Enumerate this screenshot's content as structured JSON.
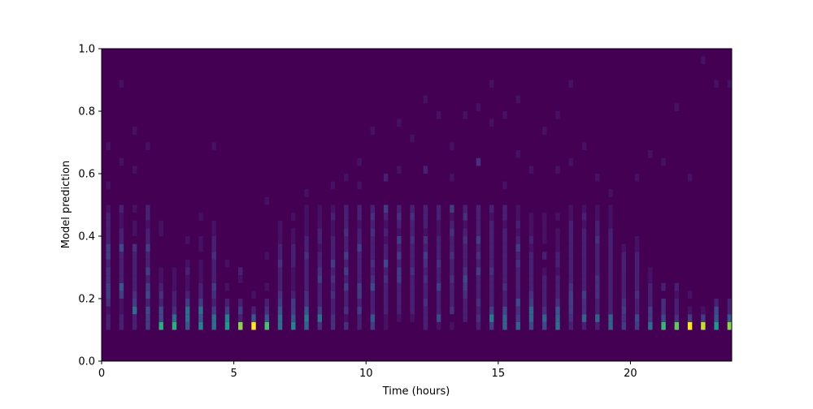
{
  "chart_data": {
    "type": "heatmap",
    "title": "",
    "xlabel": "Time (hours)",
    "ylabel": "Model prediction",
    "xlim": [
      0,
      23.83
    ],
    "ylim": [
      0,
      1.0
    ],
    "x_ticks": [
      "0",
      "5",
      "10",
      "15",
      "20"
    ],
    "x_tick_values": [
      0,
      5,
      10,
      15,
      20
    ],
    "y_ticks": [
      "0.0",
      "0.2",
      "0.4",
      "0.6",
      "0.8",
      "1.0"
    ],
    "y_tick_values": [
      0,
      0.2,
      0.4,
      0.6,
      0.8,
      1.0
    ],
    "colormap": "viridis",
    "background_color": "#440154",
    "value_max": 10,
    "x_bin_width": 0.1667,
    "y_bin_start": 0.1,
    "y_bin_width": 0.025,
    "x_centers": [
      0.25,
      0.75,
      1.25,
      1.75,
      2.25,
      2.75,
      3.25,
      3.75,
      4.25,
      4.75,
      5.25,
      5.75,
      6.25,
      6.75,
      7.25,
      7.75,
      8.25,
      8.75,
      9.25,
      9.75,
      10.25,
      10.75,
      11.25,
      11.75,
      12.25,
      12.75,
      13.25,
      13.75,
      14.25,
      14.75,
      15.25,
      15.75,
      16.25,
      16.75,
      17.25,
      17.75,
      18.25,
      18.75,
      19.25,
      19.75,
      20.25,
      20.75,
      21.25,
      21.75,
      22.25,
      22.75,
      23.25,
      23.75
    ],
    "columns": [
      [
        1,
        1,
        0.5,
        1.5,
        2,
        2,
        1.5,
        1.5,
        1,
        2,
        2,
        1,
        1,
        1,
        1,
        0.5
      ],
      [
        1,
        1,
        0.5,
        0.5,
        2,
        3,
        1,
        1,
        1,
        1,
        2.5,
        1,
        1,
        0.5,
        0.5,
        1
      ],
      [
        1,
        1,
        4,
        2,
        1.5,
        1,
        1,
        1,
        1,
        1,
        1.5,
        0,
        0.5,
        0.5,
        0,
        0.5
      ],
      [
        2,
        2,
        2.5,
        1,
        2.5,
        2,
        1,
        2,
        1,
        1,
        2,
        1,
        1,
        0.5,
        1,
        1
      ],
      [
        7,
        2.5,
        2.5,
        1,
        1.5,
        1,
        0.5,
        0.5,
        0,
        0,
        0,
        0,
        0.5,
        0.5,
        0,
        0
      ],
      [
        7,
        4,
        1.5,
        1,
        1,
        0.5,
        0.5,
        0.5,
        0,
        0,
        0,
        0,
        0,
        0,
        0,
        0
      ],
      [
        3,
        4,
        4,
        2,
        1,
        0.5,
        0.5,
        1,
        0.5,
        0,
        0,
        0.5,
        0,
        0,
        0,
        0
      ],
      [
        5,
        3,
        4,
        2,
        1,
        1,
        0.5,
        0.5,
        0.5,
        0,
        0.5,
        0.5,
        0,
        0,
        0.5,
        0
      ],
      [
        4,
        4,
        2,
        1,
        1.5,
        2,
        1,
        1,
        1,
        1.5,
        1,
        1,
        0.5,
        0.5,
        0,
        0
      ],
      [
        6,
        5,
        2,
        1,
        0,
        0.5,
        0,
        0,
        0.5,
        0,
        0,
        0,
        0,
        0,
        0,
        0
      ],
      [
        9,
        1,
        2,
        1,
        0,
        0,
        0.5,
        1,
        0,
        0,
        0,
        0,
        0,
        0,
        0,
        0
      ],
      [
        10,
        3,
        1,
        0,
        0.5,
        0,
        0,
        0,
        0,
        0,
        0,
        0,
        0,
        0,
        0,
        0
      ],
      [
        8,
        3,
        1.5,
        1,
        0,
        0.5,
        0,
        0,
        0,
        0.5,
        0,
        0,
        0,
        0,
        0,
        0
      ],
      [
        4,
        4,
        3,
        2,
        1.5,
        1,
        1,
        1,
        1.5,
        1,
        1,
        0.5,
        0.5,
        0.5,
        0,
        0
      ],
      [
        5,
        3,
        2,
        2,
        1,
        0.5,
        0.5,
        0.5,
        1,
        1,
        1,
        0.5,
        0.5,
        0,
        0.5,
        0
      ],
      [
        3.5,
        4.5,
        3,
        1.5,
        1.5,
        1,
        1,
        1,
        1,
        1.5,
        1,
        1,
        0.5,
        0.5,
        0.5,
        0.5
      ],
      [
        1.5,
        4,
        2,
        1,
        1,
        1,
        2,
        1.5,
        1,
        1,
        0.5,
        1,
        1,
        0.5,
        0.5,
        0.5
      ],
      [
        1.5,
        1.5,
        1,
        1,
        1.5,
        1,
        1.5,
        1,
        2,
        1,
        1,
        1,
        0.5,
        0.5,
        1,
        0.5
      ],
      [
        1.5,
        0.5,
        1.5,
        1,
        1,
        2,
        1,
        2,
        1,
        2,
        1,
        1,
        1.5,
        1,
        1,
        1
      ],
      [
        1,
        1,
        2,
        1,
        2,
        2,
        1,
        1,
        1,
        1,
        2,
        1,
        1,
        0.5,
        1,
        1
      ],
      [
        2,
        3,
        1,
        1,
        1,
        2.5,
        1.5,
        1,
        1.5,
        1,
        1,
        1,
        1.5,
        1,
        1.5,
        1
      ],
      [
        0.5,
        0.5,
        1,
        1,
        1,
        1,
        1.5,
        1,
        2.5,
        1,
        1,
        0.5,
        1,
        0.5,
        1,
        2
      ],
      [
        0,
        0.5,
        1,
        1,
        1,
        1,
        2,
        2,
        1,
        2,
        1,
        2,
        0.5,
        1,
        1.5,
        1
      ],
      [
        0,
        0.5,
        1,
        1,
        1,
        1,
        1,
        1.5,
        1,
        1,
        1,
        1.5,
        1,
        1,
        1.5,
        1
      ],
      [
        1,
        1,
        1,
        1.5,
        1,
        1,
        1.5,
        1,
        1.5,
        2,
        1,
        1.5,
        0.5,
        1,
        1,
        1
      ],
      [
        0.5,
        2.5,
        1,
        1,
        1,
        2,
        1,
        1,
        1.5,
        1,
        1,
        1,
        0.5,
        0.5,
        1,
        1
      ],
      [
        0.5,
        0,
        1.5,
        1,
        1,
        1,
        1.5,
        1,
        1,
        1.5,
        1,
        1,
        1.5,
        1,
        0.5,
        2
      ],
      [
        0,
        1,
        1,
        1,
        1.5,
        2,
        2.5,
        1.5,
        1,
        1,
        1,
        1.5,
        1,
        0.5,
        1.5,
        1
      ],
      [
        1,
        1.5,
        1,
        1.5,
        1,
        1,
        1,
        2,
        1,
        1.5,
        1,
        2,
        1,
        1,
        1,
        1
      ],
      [
        2,
        4.5,
        2,
        1,
        1,
        1,
        1,
        1.5,
        1,
        1,
        1,
        1,
        1,
        1,
        0.5,
        1
      ],
      [
        3.5,
        3.5,
        2.5,
        1,
        1,
        1.5,
        1,
        1,
        1,
        1,
        1,
        1,
        1,
        0.5,
        1,
        1
      ],
      [
        3.5,
        2,
        1.5,
        2.5,
        1,
        1,
        1,
        1,
        1.5,
        1,
        2,
        1,
        0.5,
        1,
        0.5,
        0.5
      ],
      [
        2.5,
        3.5,
        3.5,
        2,
        1.5,
        1,
        1,
        1,
        1,
        1,
        0.5,
        1,
        0.5,
        0.5,
        0.5,
        0
      ],
      [
        2.5,
        3.5,
        1.5,
        1,
        1,
        1,
        1,
        0.5,
        0,
        1,
        0,
        0.5,
        0.5,
        0.5,
        0.5,
        0
      ],
      [
        4,
        3.5,
        3,
        1.5,
        1,
        1,
        1,
        0.5,
        1,
        1,
        0.5,
        0.5,
        0.5,
        0,
        0.5,
        0
      ],
      [
        1,
        1.5,
        2,
        2,
        2,
        1.5,
        1,
        1,
        1,
        1,
        1,
        1,
        1,
        1,
        0.5,
        0.5
      ],
      [
        1,
        3.5,
        1.5,
        1.5,
        2,
        1,
        1,
        1,
        1,
        1,
        1,
        1,
        1,
        0.5,
        1,
        0.5
      ],
      [
        1,
        3.5,
        1,
        1,
        1.5,
        1.5,
        1.5,
        1,
        1,
        1,
        1,
        1.5,
        1,
        1,
        0.5,
        0.5
      ],
      [
        3.5,
        3.5,
        1,
        1,
        1,
        1,
        1,
        1,
        1,
        1,
        1,
        1,
        1,
        0.5,
        0.5,
        0.5
      ],
      [
        2,
        1.5,
        2,
        1.5,
        1,
        1,
        1,
        1,
        1,
        1,
        0.5,
        0,
        0,
        0,
        0,
        0
      ],
      [
        2,
        2.5,
        1,
        1,
        1.5,
        1,
        1,
        1,
        1,
        1,
        0.5,
        0.5,
        0,
        0,
        0,
        0
      ],
      [
        4,
        2,
        2,
        1,
        1,
        1,
        0.5,
        0.5,
        0,
        0,
        0,
        0,
        0,
        0,
        0,
        0
      ],
      [
        7.5,
        2.5,
        1.5,
        1.5,
        0,
        1,
        0,
        0,
        0,
        0,
        0,
        0,
        0,
        0,
        0,
        0
      ],
      [
        8.5,
        1.5,
        1,
        1,
        0.5,
        1,
        0,
        0,
        0,
        0,
        0,
        0,
        0,
        0,
        0,
        0
      ],
      [
        10,
        2,
        0.5,
        0,
        0.5,
        0,
        0,
        0,
        0,
        0,
        0,
        0,
        0,
        0,
        0,
        0
      ],
      [
        9.5,
        2,
        0.5,
        0,
        0,
        0,
        0,
        0,
        0,
        0,
        0,
        0,
        0,
        0,
        0,
        0
      ],
      [
        6,
        3,
        2.5,
        1,
        0,
        0,
        0,
        0,
        0,
        0,
        0,
        0,
        0,
        0,
        0,
        0
      ],
      [
        9,
        3,
        1,
        1,
        0,
        0,
        0,
        0,
        0,
        0,
        0,
        0,
        0,
        0,
        0,
        0
      ]
    ],
    "sparse_upper_cells": [
      [
        0,
        0.675,
        0.5
      ],
      [
        0,
        0.55,
        0.5
      ],
      [
        1,
        0.875,
        0.5
      ],
      [
        1,
        0.625,
        0.5
      ],
      [
        2,
        0.725,
        0.5
      ],
      [
        2,
        0.6,
        0.5
      ],
      [
        3,
        0.675,
        0.5
      ],
      [
        8,
        0.675,
        0.5
      ],
      [
        12,
        0.5,
        0.5
      ],
      [
        15,
        0.525,
        0.5
      ],
      [
        17,
        0.55,
        0.5
      ],
      [
        18,
        0.575,
        0.5
      ],
      [
        19,
        0.625,
        0.5
      ],
      [
        19,
        0.55,
        0.5
      ],
      [
        20,
        0.725,
        0.5
      ],
      [
        21,
        0.575,
        1
      ],
      [
        22,
        0.75,
        0.5
      ],
      [
        22,
        0.6,
        0.5
      ],
      [
        23,
        0.7,
        0.5
      ],
      [
        24,
        0.825,
        0.5
      ],
      [
        24,
        0.6,
        1
      ],
      [
        25,
        0.775,
        0.5
      ],
      [
        26,
        0.675,
        0.5
      ],
      [
        26,
        0.575,
        0.5
      ],
      [
        27,
        0.775,
        0.5
      ],
      [
        28,
        0.8,
        0.5
      ],
      [
        28,
        0.625,
        1.5
      ],
      [
        29,
        0.875,
        0.5
      ],
      [
        29,
        0.75,
        0.5
      ],
      [
        30,
        0.775,
        0.5
      ],
      [
        30,
        0.55,
        0.5
      ],
      [
        31,
        0.825,
        0.5
      ],
      [
        31,
        0.65,
        0.5
      ],
      [
        32,
        0.6,
        0.5
      ],
      [
        33,
        0.725,
        0.5
      ],
      [
        34,
        0.775,
        0.5
      ],
      [
        34,
        0.6,
        0.5
      ],
      [
        35,
        0.875,
        0.5
      ],
      [
        35,
        0.625,
        0.5
      ],
      [
        36,
        0.675,
        0.5
      ],
      [
        37,
        0.575,
        0.5
      ],
      [
        38,
        0.525,
        0.5
      ],
      [
        40,
        0.575,
        0.5
      ],
      [
        41,
        0.65,
        0.5
      ],
      [
        42,
        0.625,
        0.5
      ],
      [
        43,
        0.8,
        0.5
      ],
      [
        44,
        0.575,
        0.5
      ],
      [
        45,
        0.95,
        0.5
      ],
      [
        46,
        0.875,
        0.5
      ],
      [
        47,
        0.875,
        0.5
      ]
    ]
  }
}
